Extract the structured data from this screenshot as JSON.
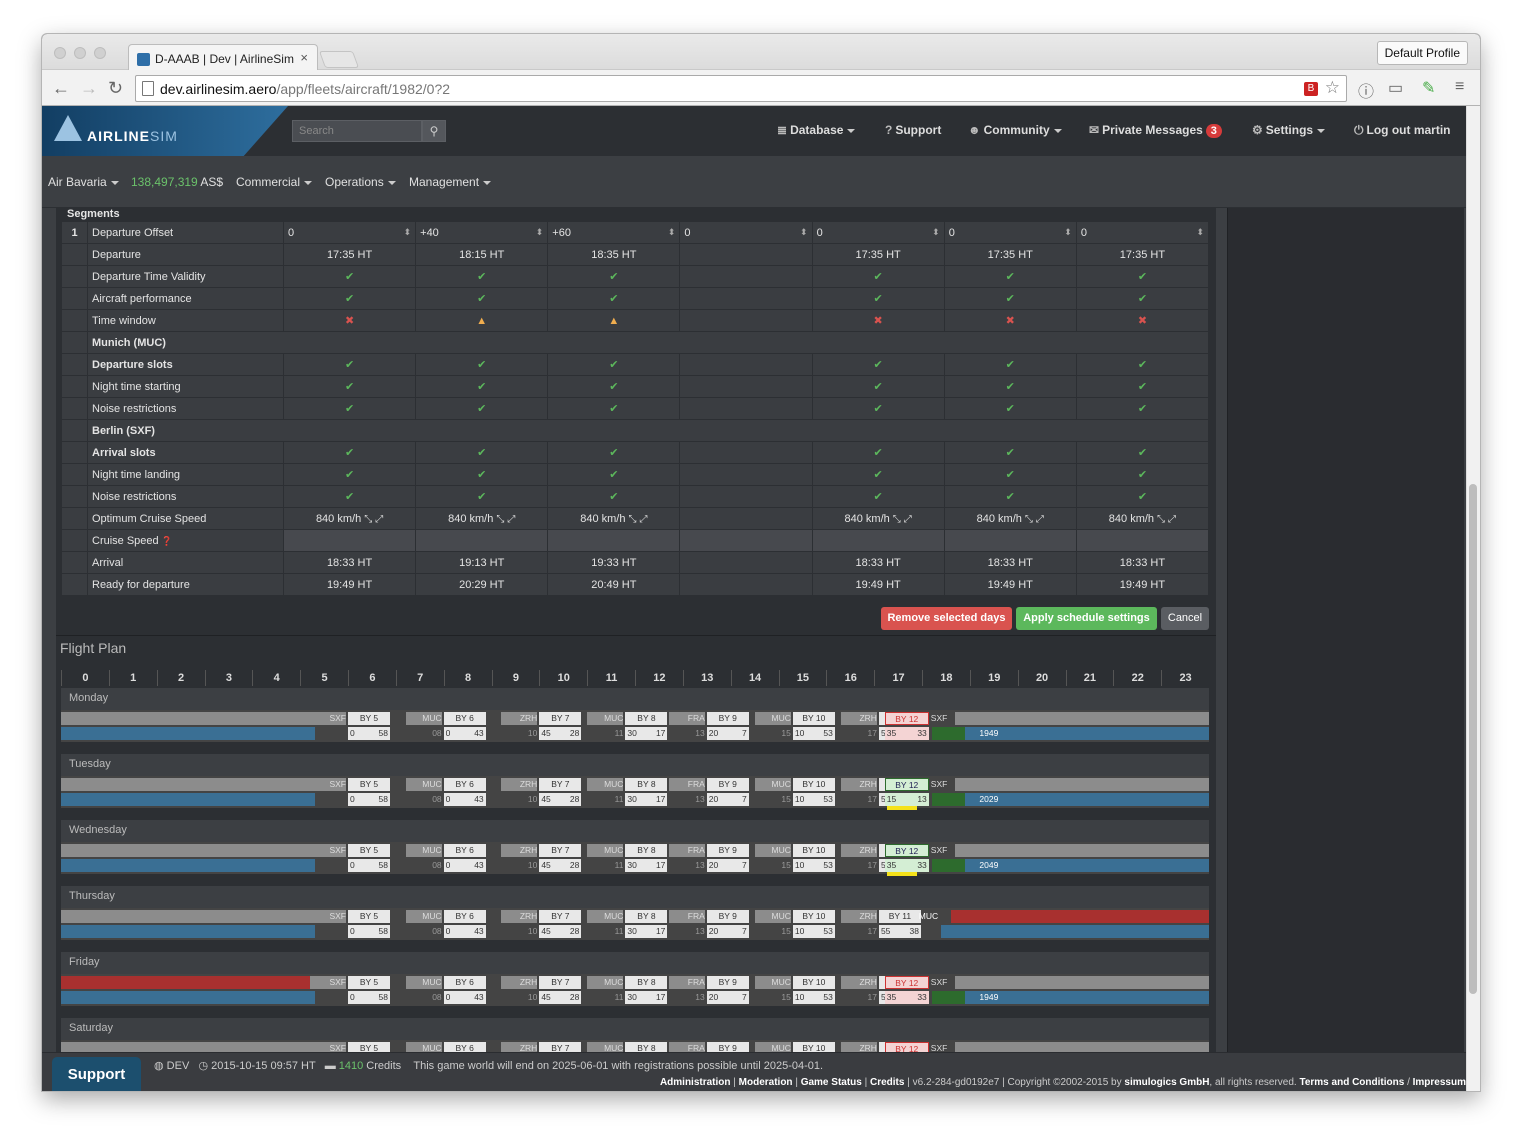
{
  "browser": {
    "tab_title": "D-AAAB | Dev | AirlineSim",
    "tab_close": "×",
    "profile_button": "Default Profile",
    "url_host": "dev.airlinesim.aero",
    "url_path": "/app/fleets/aircraft/1982/0?2"
  },
  "header": {
    "logo_bold": "AIRLINE",
    "logo_light": "SIM",
    "search_placeholder": "Search",
    "nav": {
      "database": "Database",
      "support": "Support",
      "community": "Community",
      "private_messages": "Private Messages",
      "private_messages_count": "3",
      "settings": "Settings",
      "logout": "Log out martin"
    }
  },
  "subnav": {
    "airline": "Air Bavaria",
    "cash": "138,497,319",
    "currency": "AS$",
    "commercial": "Commercial",
    "operations": "Operations",
    "management": "Management"
  },
  "segments": {
    "title": "Segments",
    "row_number": "1",
    "offset_label": "Departure Offset",
    "offsets": [
      "0",
      "+40",
      "+60",
      "0",
      "0",
      "0",
      "0"
    ],
    "rows": [
      {
        "label": "Departure",
        "cells": [
          "17:35 HT",
          "18:15 HT",
          "18:35 HT",
          "",
          "17:35 HT",
          "17:35 HT",
          "17:35 HT"
        ]
      },
      {
        "label": "Departure Time Validity",
        "cells": [
          "ok",
          "ok",
          "ok",
          "",
          "ok",
          "ok",
          "ok"
        ]
      },
      {
        "label": "Aircraft performance",
        "cells": [
          "ok",
          "ok",
          "ok",
          "",
          "ok",
          "ok",
          "ok"
        ]
      },
      {
        "label": "Time window",
        "cells": [
          "bad",
          "warn",
          "warn",
          "",
          "bad",
          "bad",
          "bad"
        ]
      },
      {
        "label": "Munich (MUC)",
        "header": true
      },
      {
        "label": "Departure slots",
        "bold": true,
        "cells": [
          "ok",
          "ok",
          "ok",
          "",
          "ok",
          "ok",
          "ok"
        ]
      },
      {
        "label": "Night time starting",
        "cells": [
          "ok",
          "ok",
          "ok",
          "",
          "ok",
          "ok",
          "ok"
        ]
      },
      {
        "label": "Noise restrictions",
        "cells": [
          "ok",
          "ok",
          "ok",
          "",
          "ok",
          "ok",
          "ok"
        ]
      },
      {
        "label": "Berlin (SXF)",
        "header": true
      },
      {
        "label": "Arrival slots",
        "bold": true,
        "cells": [
          "ok",
          "ok",
          "ok",
          "",
          "ok",
          "ok",
          "ok"
        ]
      },
      {
        "label": "Night time landing",
        "cells": [
          "ok",
          "ok",
          "ok",
          "",
          "ok",
          "ok",
          "ok"
        ]
      },
      {
        "label": "Noise restrictions",
        "cells": [
          "ok",
          "ok",
          "ok",
          "",
          "ok",
          "ok",
          "ok"
        ]
      },
      {
        "label": "Optimum Cruise Speed",
        "cells": [
          "840 km/h",
          "840 km/h",
          "840 km/h",
          "",
          "840 km/h",
          "840 km/h",
          "840 km/h"
        ],
        "speed": true
      },
      {
        "label": "Cruise Speed",
        "help": true,
        "gray": true,
        "cells": [
          "",
          "",
          "",
          "",
          "",
          "",
          ""
        ]
      },
      {
        "label": "Arrival",
        "cells": [
          "18:33 HT",
          "19:13 HT",
          "19:33 HT",
          "",
          "18:33 HT",
          "18:33 HT",
          "18:33 HT"
        ]
      },
      {
        "label": "Ready for departure",
        "cells": [
          "19:49 HT",
          "20:29 HT",
          "20:49 HT",
          "",
          "19:49 HT",
          "19:49 HT",
          "19:49 HT"
        ]
      }
    ],
    "icons": {
      "ok": "check-icon",
      "bad": "cross-icon",
      "warn": "warning-icon"
    },
    "buttons": {
      "remove": "Remove selected days",
      "apply": "Apply schedule settings",
      "cancel": "Cancel"
    },
    "colors": {
      "remove": "#d9534f",
      "apply": "#5cb85c",
      "cancel": "#5a5d62"
    }
  },
  "flight_plan": {
    "title": "Flight Plan",
    "hours": [
      "0",
      "1",
      "2",
      "3",
      "4",
      "5",
      "6",
      "7",
      "8",
      "9",
      "10",
      "11",
      "12",
      "13",
      "14",
      "15",
      "16",
      "17",
      "18",
      "19",
      "20",
      "21",
      "22",
      "23"
    ],
    "days": [
      {
        "name": "Monday",
        "last_flight": "BY 12",
        "last_from": "35",
        "last_to": "33",
        "last_dest": "SXF",
        "end_value": "1949",
        "state": "conflict"
      },
      {
        "name": "Tuesday",
        "last_flight": "BY 12",
        "last_from": "15",
        "last_to": "13",
        "last_dest": "SXF",
        "end_value": "2029",
        "state": "ok"
      },
      {
        "name": "Wednesday",
        "last_flight": "BY 12",
        "last_from": "35",
        "last_to": "33",
        "last_dest": "SXF",
        "end_value": "2049",
        "state": "ok"
      },
      {
        "name": "Thursday",
        "last_flight": "",
        "last_from": "",
        "last_to": "",
        "last_dest": "MUC",
        "end_value": "1856",
        "state": "empty"
      },
      {
        "name": "Friday",
        "last_flight": "BY 12",
        "last_from": "35",
        "last_to": "33",
        "last_dest": "SXF",
        "end_value": "1949",
        "state": "conflict"
      },
      {
        "name": "Saturday",
        "last_flight": "BY 12",
        "last_from": "",
        "last_to": "",
        "last_dest": "SXF",
        "end_value": "",
        "state": "conflict"
      }
    ],
    "recurring_flights": [
      {
        "station": "SXF",
        "flight": "BY 5",
        "dep": "0",
        "arr": "58",
        "arr_label": ""
      },
      {
        "station": "MUC",
        "flight": "BY 6",
        "dep": "0",
        "arr": "43",
        "arr_label": "08"
      },
      {
        "station": "ZRH",
        "flight": "BY 7",
        "dep": "45",
        "arr": "28",
        "arr_label": "10"
      },
      {
        "station": "MUC",
        "flight": "BY 8",
        "dep": "30",
        "arr": "17",
        "arr_label": "11"
      },
      {
        "station": "FRA",
        "flight": "BY 9",
        "dep": "20",
        "arr": "7",
        "arr_label": "13"
      },
      {
        "station": "MUC",
        "flight": "BY 10",
        "dep": "10",
        "arr": "53",
        "arr_label": "15"
      },
      {
        "station": "ZRH",
        "flight": "BY 11",
        "dep": "55",
        "arr": "38",
        "arr_label": "17"
      }
    ],
    "colors": {
      "blue": "#3a6f94",
      "red": "#a8302f",
      "green": "#2d6b2d",
      "gray": "#8c8c8c",
      "yellow": "#f5e21a"
    }
  },
  "footer": {
    "support": "Support",
    "env": "DEV",
    "datetime": "2015-10-15 09:57 HT",
    "credits_num": "1410",
    "credits_label": "Credits",
    "notice": "This game world will end on 2025-06-01 with registrations possible until 2025-04-01.",
    "links": [
      "Administration",
      "Moderation",
      "Game Status",
      "Credits"
    ],
    "version": "v6.2-284-gd0192e7",
    "copyright": "Copyright ©2002-2015 by",
    "company": "simulogics GmbH",
    "rights": ", all rights reserved.",
    "terms": "Terms and Conditions",
    "impressum": "Impressum"
  }
}
